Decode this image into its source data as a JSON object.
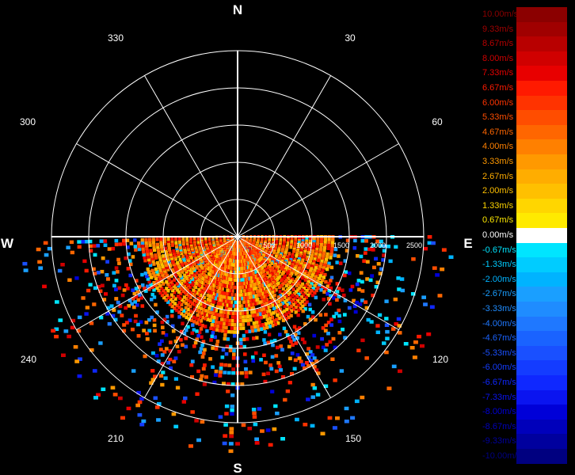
{
  "compass": {
    "north": "N",
    "east": "E",
    "south": "S",
    "west": "W"
  },
  "azimuth_labels": [
    "30",
    "60",
    "120",
    "150",
    "210",
    "240",
    "300",
    "330"
  ],
  "range_labels": [
    "500",
    "1000",
    "1500",
    "2000",
    "2500"
  ],
  "legend": {
    "items": [
      {
        "label": "10.00m/s",
        "color": "#8b0000"
      },
      {
        "label": "9.33m/s",
        "color": "#a00000"
      },
      {
        "label": "8.67m/s",
        "color": "#b80000"
      },
      {
        "label": "8.00m/s",
        "color": "#d00000"
      },
      {
        "label": "7.33m/s",
        "color": "#e80000"
      },
      {
        "label": "6.67m/s",
        "color": "#ff1a00"
      },
      {
        "label": "6.00m/s",
        "color": "#ff3300"
      },
      {
        "label": "5.33m/s",
        "color": "#ff4d00"
      },
      {
        "label": "4.67m/s",
        "color": "#ff6600"
      },
      {
        "label": "4.00m/s",
        "color": "#ff8000"
      },
      {
        "label": "3.33m/s",
        "color": "#ff9900"
      },
      {
        "label": "2.67m/s",
        "color": "#ffad00"
      },
      {
        "label": "2.00m/s",
        "color": "#ffc000"
      },
      {
        "label": "1.33m/s",
        "color": "#ffd600"
      },
      {
        "label": "0.67m/s",
        "color": "#ffea00"
      },
      {
        "label": "0.00m/s",
        "color": "#ffffff"
      },
      {
        "label": "-0.67m/s",
        "color": "#00e5ff"
      },
      {
        "label": "-1.33m/s",
        "color": "#00ccff"
      },
      {
        "label": "-2.00m/s",
        "color": "#00b3ff"
      },
      {
        "label": "-2.67m/s",
        "color": "#1a9fff"
      },
      {
        "label": "-3.33m/s",
        "color": "#1f8cff"
      },
      {
        "label": "-4.00m/s",
        "color": "#1f78ff"
      },
      {
        "label": "-4.67m/s",
        "color": "#1a63ff"
      },
      {
        "label": "-5.33m/s",
        "color": "#1a50ff"
      },
      {
        "label": "-6.00m/s",
        "color": "#143cff"
      },
      {
        "label": "-6.67m/s",
        "color": "#0f28ff"
      },
      {
        "label": "-7.33m/s",
        "color": "#0a14f0"
      },
      {
        "label": "-8.00m/s",
        "color": "#0000d8"
      },
      {
        "label": "-8.67m/s",
        "color": "#0000bb"
      },
      {
        "label": "-9.33m/s",
        "color": "#00009e"
      },
      {
        "label": "-10.00m/s",
        "color": "#000080"
      }
    ]
  },
  "chart_data": {
    "type": "heatmap",
    "projection": "polar",
    "azimuth_ticks_deg": [
      30,
      60,
      120,
      150,
      210,
      240,
      300,
      330
    ],
    "range_ticks_m": [
      500,
      1000,
      1500,
      2000,
      2500
    ],
    "range_max_m": 2500,
    "observed_sector_deg": [
      90,
      270
    ],
    "colorscale": {
      "min": -10.0,
      "max": 10.0,
      "step": 0.67,
      "unit": "m/s"
    },
    "legend_placement": "right",
    "grid": true
  }
}
